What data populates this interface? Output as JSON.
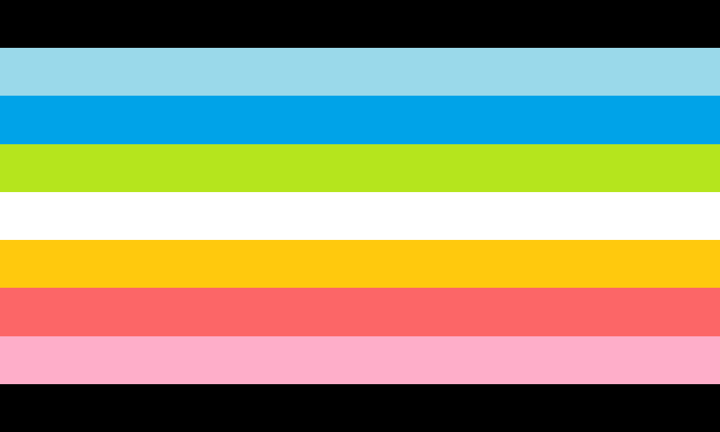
{
  "flag": {
    "stripes": [
      {
        "color": "#000000"
      },
      {
        "color": "#9AD9EA"
      },
      {
        "color": "#00A3E8"
      },
      {
        "color": "#B5E51D"
      },
      {
        "color": "#FFFFFF"
      },
      {
        "color": "#FFC90E"
      },
      {
        "color": "#FC6667"
      },
      {
        "color": "#FEAEC9"
      },
      {
        "color": "#000000"
      }
    ]
  }
}
